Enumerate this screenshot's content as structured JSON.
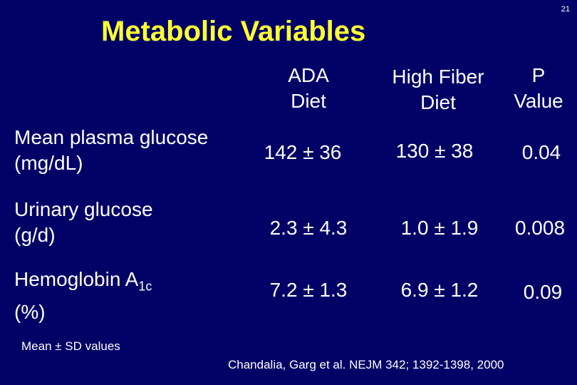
{
  "slide_number": "21",
  "title": "Metabolic Variables",
  "table": {
    "columns": [
      {
        "line1": "ADA",
        "line2": "Diet"
      },
      {
        "line1": "High Fiber",
        "line2": "Diet"
      },
      {
        "line1": "P",
        "line2": "Value"
      }
    ],
    "rows": [
      {
        "label_line1": "Mean plasma glucose",
        "label_line2": "(mg/dL)",
        "ada": "142 ± 36",
        "fiber": "130 ± 38",
        "p": "0.04"
      },
      {
        "label_line1": "Urinary glucose",
        "label_line2": "(g/d)",
        "ada": "2.3 ± 4.3",
        "fiber": "1.0 ± 1.9",
        "p": "0.008"
      },
      {
        "label_line1_main": "Hemoglobin A",
        "label_line1_sub": "1c",
        "label_line2": "(%)",
        "ada": "7.2 ± 1.3",
        "fiber": "6.9 ± 1.2",
        "p": "0.09"
      }
    ]
  },
  "footnote": "Mean ± SD values",
  "citation": "Chandalia, Garg et al. NEJM 342; 1392-1398, 2000"
}
